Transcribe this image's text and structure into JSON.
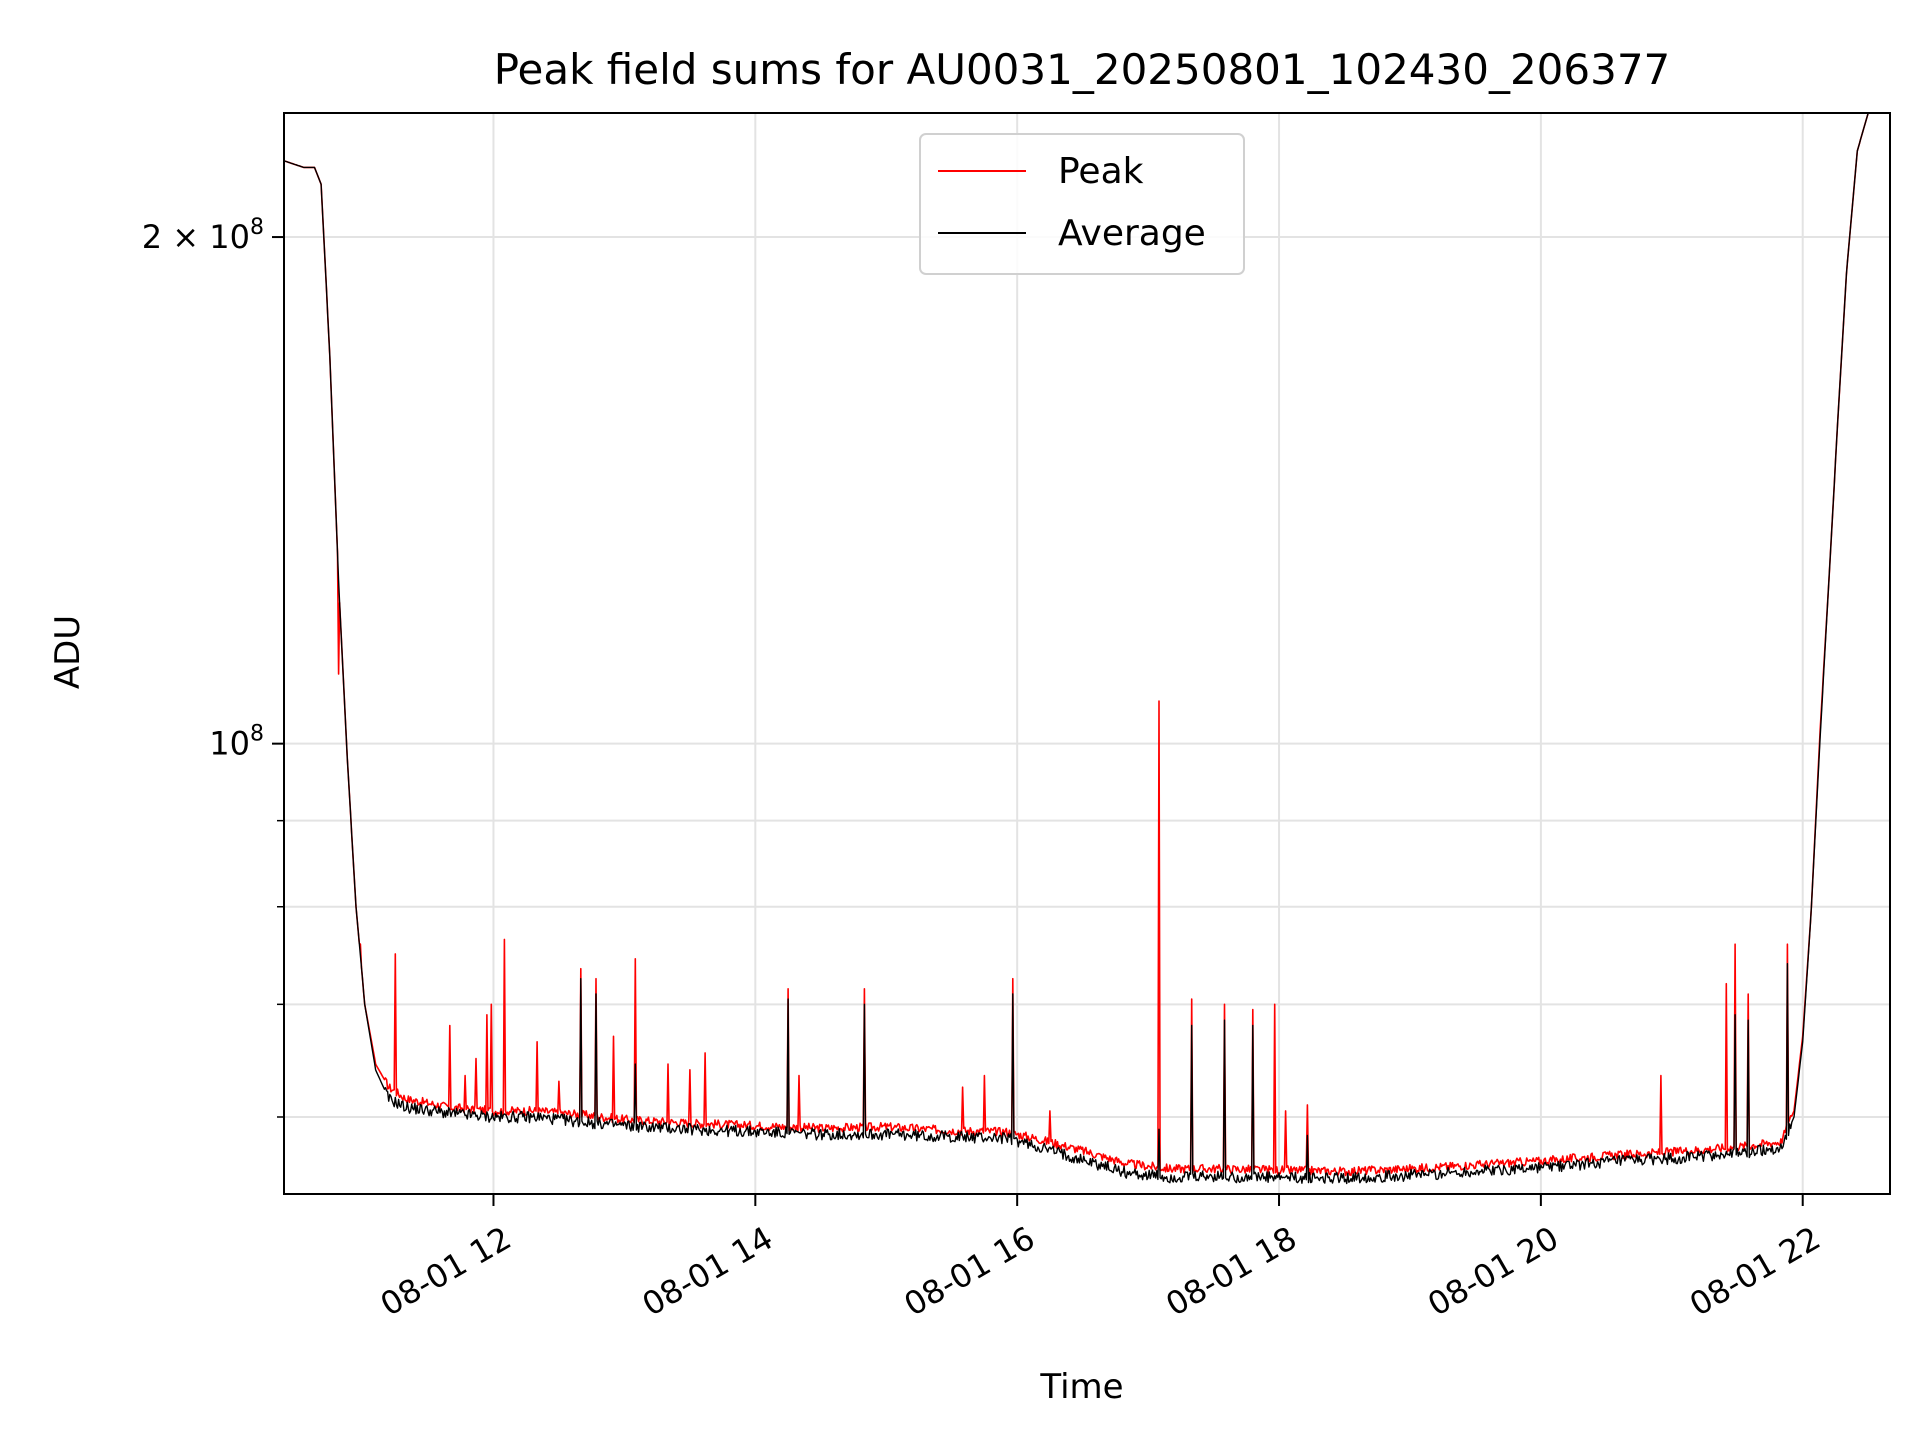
{
  "chart_data": {
    "type": "line",
    "title": "Peak field sums for AU0031_20250801_102430_206377",
    "xlabel": "Time",
    "ylabel": "ADU",
    "y_scale": "log",
    "xlim": [
      "2025-08-01T10:24",
      "2025-08-01T22:40"
    ],
    "ylim": [
      54000000,
      237000000
    ],
    "grid": true,
    "legend_position": "top-center",
    "x_ticks": [
      {
        "value": "2025-08-01T12:00",
        "label": "08-01 12"
      },
      {
        "value": "2025-08-01T14:00",
        "label": "08-01 14"
      },
      {
        "value": "2025-08-01T16:00",
        "label": "08-01 16"
      },
      {
        "value": "2025-08-01T18:00",
        "label": "08-01 18"
      },
      {
        "value": "2025-08-01T20:00",
        "label": "08-01 20"
      },
      {
        "value": "2025-08-01T22:00",
        "label": "08-01 22"
      }
    ],
    "y_major_ticks": [
      {
        "value": 100000000,
        "mantissa": "",
        "exponent": "8"
      },
      {
        "value": 200000000,
        "mantissa": "2 × ",
        "exponent": "8"
      }
    ],
    "y_minor_ticks": [
      60000000,
      70000000,
      80000000,
      90000000
    ],
    "series": [
      {
        "name": "Peak",
        "color": "#ff0000",
        "points": [
          [
            "2025-08-01T10:24",
            222000000
          ],
          [
            "2025-08-01T10:33",
            220000000
          ],
          [
            "2025-08-01T10:38",
            220000000
          ],
          [
            "2025-08-01T10:41",
            215000000
          ],
          [
            "2025-08-01T10:45",
            170000000
          ],
          [
            "2025-08-01T10:49",
            125000000
          ],
          [
            "2025-08-01T10:53",
            98000000
          ],
          [
            "2025-08-01T10:57",
            80000000
          ],
          [
            "2025-08-01T11:01",
            70000000
          ],
          [
            "2025-08-01T11:06",
            64500000
          ],
          [
            "2025-08-01T11:12",
            62500000
          ],
          [
            "2025-08-01T11:20",
            61500000
          ],
          [
            "2025-08-01T11:40",
            60800000
          ],
          [
            "2025-08-01T12:00",
            60500000
          ],
          [
            "2025-08-01T12:20",
            60500000
          ],
          [
            "2025-08-01T12:40",
            60200000
          ],
          [
            "2025-08-01T13:00",
            59800000
          ],
          [
            "2025-08-01T13:30",
            59500000
          ],
          [
            "2025-08-01T14:00",
            59300000
          ],
          [
            "2025-08-01T14:30",
            59100000
          ],
          [
            "2025-08-01T15:00",
            59200000
          ],
          [
            "2025-08-01T15:30",
            58900000
          ],
          [
            "2025-08-01T15:55",
            58800000
          ],
          [
            "2025-08-01T16:10",
            58200000
          ],
          [
            "2025-08-01T16:30",
            57300000
          ],
          [
            "2025-08-01T16:50",
            56300000
          ],
          [
            "2025-08-01T17:10",
            55900000
          ],
          [
            "2025-08-01T17:30",
            55900000
          ],
          [
            "2025-08-01T18:00",
            55800000
          ],
          [
            "2025-08-01T18:30",
            55700000
          ],
          [
            "2025-08-01T19:00",
            55900000
          ],
          [
            "2025-08-01T19:30",
            56200000
          ],
          [
            "2025-08-01T20:00",
            56500000
          ],
          [
            "2025-08-01T20:30",
            56900000
          ],
          [
            "2025-08-01T21:00",
            57200000
          ],
          [
            "2025-08-01T21:30",
            57600000
          ],
          [
            "2025-08-01T21:50",
            58000000
          ],
          [
            "2025-08-01T21:56",
            60500000
          ],
          [
            "2025-08-01T22:00",
            67000000
          ],
          [
            "2025-08-01T22:04",
            80000000
          ],
          [
            "2025-08-01T22:08",
            102000000
          ],
          [
            "2025-08-01T22:12",
            125000000
          ],
          [
            "2025-08-01T22:16",
            155000000
          ],
          [
            "2025-08-01T22:20",
            190000000
          ],
          [
            "2025-08-01T22:25",
            225000000
          ],
          [
            "2025-08-01T22:30",
            237000000
          ]
        ],
        "spikes": [
          [
            "2025-08-01T10:49",
            110000000
          ],
          [
            "2025-08-01T10:59",
            76000000
          ],
          [
            "2025-08-01T11:15",
            75000000
          ],
          [
            "2025-08-01T11:40",
            68000000
          ],
          [
            "2025-08-01T11:47",
            63500000
          ],
          [
            "2025-08-01T11:52",
            65000000
          ],
          [
            "2025-08-01T11:57",
            69000000
          ],
          [
            "2025-08-01T11:59",
            70000000
          ],
          [
            "2025-08-01T12:05",
            76500000
          ],
          [
            "2025-08-01T12:20",
            66500000
          ],
          [
            "2025-08-01T12:30",
            63000000
          ],
          [
            "2025-08-01T12:40",
            73500000
          ],
          [
            "2025-08-01T12:47",
            72500000
          ],
          [
            "2025-08-01T12:55",
            67000000
          ],
          [
            "2025-08-01T13:05",
            74500000
          ],
          [
            "2025-08-01T13:20",
            64500000
          ],
          [
            "2025-08-01T13:30",
            64000000
          ],
          [
            "2025-08-01T13:37",
            65500000
          ],
          [
            "2025-08-01T14:15",
            71500000
          ],
          [
            "2025-08-01T14:20",
            63500000
          ],
          [
            "2025-08-01T14:50",
            71500000
          ],
          [
            "2025-08-01T15:35",
            62500000
          ],
          [
            "2025-08-01T15:45",
            63500000
          ],
          [
            "2025-08-01T15:58",
            72500000
          ],
          [
            "2025-08-01T16:15",
            60500000
          ],
          [
            "2025-08-01T17:05",
            106000000
          ],
          [
            "2025-08-01T17:20",
            70500000
          ],
          [
            "2025-08-01T17:35",
            70000000
          ],
          [
            "2025-08-01T17:48",
            69500000
          ],
          [
            "2025-08-01T17:58",
            70000000
          ],
          [
            "2025-08-01T18:03",
            60500000
          ],
          [
            "2025-08-01T18:13",
            61000000
          ],
          [
            "2025-08-01T20:55",
            63500000
          ],
          [
            "2025-08-01T21:25",
            72000000
          ],
          [
            "2025-08-01T21:29",
            76000000
          ],
          [
            "2025-08-01T21:35",
            71000000
          ],
          [
            "2025-08-01T21:53",
            76000000
          ],
          [
            "2025-08-01T21:56",
            60500000
          ]
        ]
      },
      {
        "name": "Average",
        "color": "#000000",
        "points": [
          [
            "2025-08-01T10:24",
            222000000
          ],
          [
            "2025-08-01T10:33",
            220000000
          ],
          [
            "2025-08-01T10:38",
            220000000
          ],
          [
            "2025-08-01T10:41",
            215000000
          ],
          [
            "2025-08-01T10:45",
            170000000
          ],
          [
            "2025-08-01T10:49",
            125000000
          ],
          [
            "2025-08-01T10:53",
            98000000
          ],
          [
            "2025-08-01T10:57",
            80000000
          ],
          [
            "2025-08-01T11:01",
            70000000
          ],
          [
            "2025-08-01T11:06",
            64000000
          ],
          [
            "2025-08-01T11:12",
            61500000
          ],
          [
            "2025-08-01T11:20",
            60800000
          ],
          [
            "2025-08-01T11:40",
            60300000
          ],
          [
            "2025-08-01T12:00",
            60000000
          ],
          [
            "2025-08-01T12:20",
            60000000
          ],
          [
            "2025-08-01T12:40",
            59600000
          ],
          [
            "2025-08-01T13:00",
            59300000
          ],
          [
            "2025-08-01T13:30",
            59000000
          ],
          [
            "2025-08-01T14:00",
            58800000
          ],
          [
            "2025-08-01T14:30",
            58600000
          ],
          [
            "2025-08-01T15:00",
            58600000
          ],
          [
            "2025-08-01T15:30",
            58400000
          ],
          [
            "2025-08-01T15:55",
            58300000
          ],
          [
            "2025-08-01T16:10",
            57600000
          ],
          [
            "2025-08-01T16:30",
            56600000
          ],
          [
            "2025-08-01T16:50",
            55600000
          ],
          [
            "2025-08-01T17:10",
            55200000
          ],
          [
            "2025-08-01T17:30",
            55300000
          ],
          [
            "2025-08-01T18:00",
            55200000
          ],
          [
            "2025-08-01T18:30",
            55200000
          ],
          [
            "2025-08-01T19:00",
            55400000
          ],
          [
            "2025-08-01T19:30",
            55700000
          ],
          [
            "2025-08-01T20:00",
            56000000
          ],
          [
            "2025-08-01T20:30",
            56400000
          ],
          [
            "2025-08-01T21:00",
            56700000
          ],
          [
            "2025-08-01T21:30",
            57100000
          ],
          [
            "2025-08-01T21:50",
            57500000
          ],
          [
            "2025-08-01T21:56",
            60000000
          ],
          [
            "2025-08-01T22:00",
            66500000
          ],
          [
            "2025-08-01T22:04",
            80000000
          ],
          [
            "2025-08-01T22:08",
            101000000
          ],
          [
            "2025-08-01T22:12",
            125000000
          ],
          [
            "2025-08-01T22:16",
            155000000
          ],
          [
            "2025-08-01T22:20",
            190000000
          ],
          [
            "2025-08-01T22:25",
            225000000
          ],
          [
            "2025-08-01T22:30",
            237000000
          ]
        ],
        "spikes": [
          [
            "2025-08-01T12:40",
            72500000
          ],
          [
            "2025-08-01T12:47",
            71000000
          ],
          [
            "2025-08-01T13:05",
            64500000
          ],
          [
            "2025-08-01T14:15",
            70500000
          ],
          [
            "2025-08-01T14:50",
            70000000
          ],
          [
            "2025-08-01T15:58",
            71000000
          ],
          [
            "2025-08-01T17:05",
            59000000
          ],
          [
            "2025-08-01T17:20",
            68000000
          ],
          [
            "2025-08-01T17:35",
            68500000
          ],
          [
            "2025-08-01T17:48",
            68000000
          ],
          [
            "2025-08-01T18:13",
            58500000
          ],
          [
            "2025-08-01T21:29",
            69000000
          ],
          [
            "2025-08-01T21:35",
            68500000
          ],
          [
            "2025-08-01T21:53",
            74000000
          ]
        ]
      }
    ]
  }
}
